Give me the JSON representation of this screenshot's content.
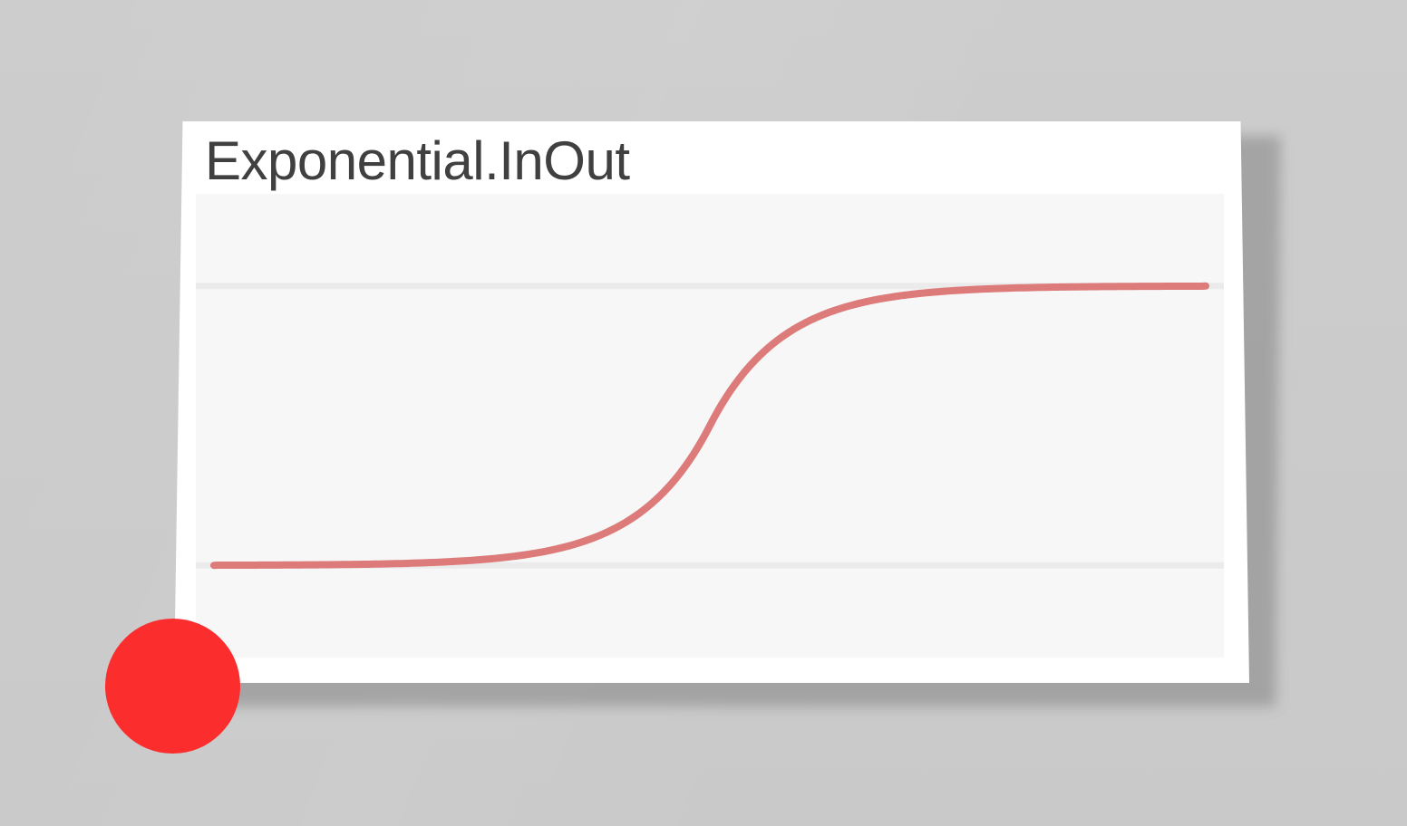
{
  "card": {
    "title": "Exponential.InOut"
  },
  "colors": {
    "background": "#cbcbcb",
    "card": "#ffffff",
    "plot_background": "#f7f7f7",
    "guide_line": "#ebebeb",
    "curve": "#dd7a7a",
    "tracker_dot": "#fb2d2d",
    "title_text": "#404040"
  },
  "chart_data": {
    "type": "line",
    "easing": "Exponential.InOut",
    "grid": false,
    "guide_lines": [
      0,
      1
    ],
    "xlim": [
      0,
      1
    ],
    "ylim": [
      -0.33,
      1.33
    ],
    "series": [
      {
        "x": [
          0,
          0.05,
          0.1,
          0.15,
          0.2,
          0.25,
          0.3,
          0.35,
          0.4,
          0.45,
          0.5,
          0.55,
          0.6,
          0.65,
          0.7,
          0.75,
          0.8,
          0.85,
          0.9,
          0.95,
          1
        ],
        "y": [
          0,
          0.0005,
          0.002,
          0.0039,
          0.0078,
          0.0156,
          0.0313,
          0.0625,
          0.125,
          0.25,
          0.5,
          0.75,
          0.875,
          0.9375,
          0.9688,
          0.9844,
          0.9922,
          0.9961,
          0.998,
          0.999,
          1
        ]
      }
    ]
  },
  "tracker": {
    "icon": "filled-circle",
    "progress": 0
  }
}
